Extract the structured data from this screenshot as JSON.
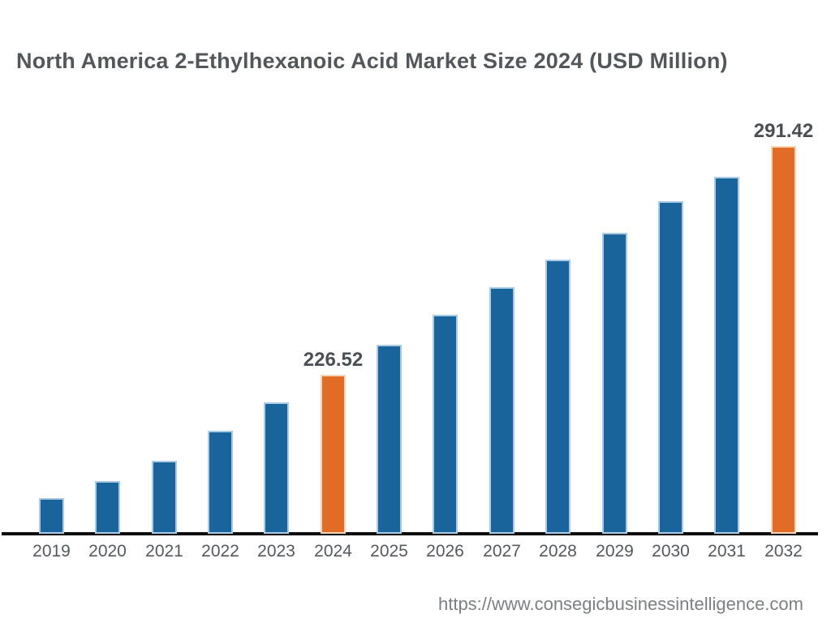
{
  "page": {
    "title": "North America 2-Ethylhexanoic Acid Market Size 2024 (USD Million)",
    "source_url": "https://www.consegicbusinessintelligence.com"
  },
  "colors": {
    "bar_default": "#1a649c",
    "bar_default_edge": "#aacbe5",
    "bar_highlight": "#e26c26",
    "bar_highlight_edge": "#f5d5b5",
    "axis_line": "#0d0d0d",
    "title_text": "#54575a",
    "tick_text": "#55585c",
    "value_label_text": "#4b4e52",
    "url_text": "#7d8083"
  },
  "chart_data": {
    "type": "bar",
    "title": "North America 2-Ethylhexanoic Acid Market Size 2024 (USD Million)",
    "categories": [
      "2019",
      "2020",
      "2021",
      "2022",
      "2023",
      "2024",
      "2025",
      "2026",
      "2027",
      "2028",
      "2029",
      "2030",
      "2031",
      "2032"
    ],
    "values": [
      191.5,
      196.4,
      202.1,
      210.6,
      218.7,
      226.52,
      235.0,
      243.5,
      251.4,
      259.2,
      266.8,
      275.8,
      282.7,
      291.42
    ],
    "data_labels": [
      "",
      "",
      "",
      "",
      "",
      "226.52",
      "",
      "",
      "",
      "",
      "",
      "",
      "",
      "291.42"
    ],
    "highlighted_categories": [
      "2024",
      "2032"
    ],
    "xlabel": "",
    "ylabel": "",
    "ylim": [
      181.4,
      291.42
    ],
    "y_axis_visible": false,
    "grid": false,
    "legend": "none"
  }
}
